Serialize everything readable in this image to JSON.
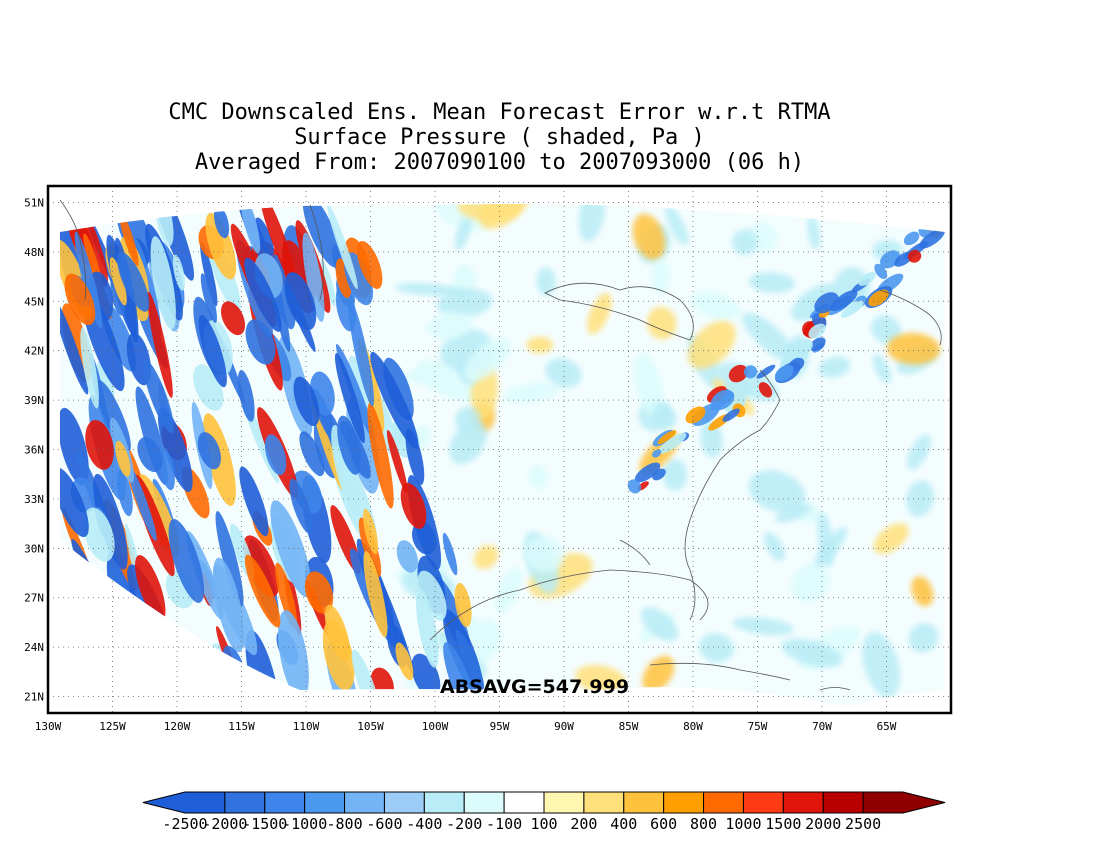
{
  "title": {
    "line1": "CMC Downscaled Ens. Mean Forecast Error w.r.t RTMA",
    "line2": "Surface Pressure ( shaded, Pa )",
    "line3": "Averaged From: 2007090100 to 2007093000 (06 h)"
  },
  "map": {
    "lon_range": [
      -130,
      -60
    ],
    "lat_range": [
      20,
      52
    ],
    "lon_ticks": [
      "130W",
      "125W",
      "120W",
      "115W",
      "110W",
      "105W",
      "100W",
      "95W",
      "90W",
      "85W",
      "80W",
      "75W",
      "70W",
      "65W"
    ],
    "lon_tick_values": [
      -130,
      -125,
      -120,
      -115,
      -110,
      -105,
      -100,
      -95,
      -90,
      -85,
      -80,
      -75,
      -70,
      -65
    ],
    "lat_ticks": [
      "21N",
      "24N",
      "27N",
      "30N",
      "33N",
      "36N",
      "39N",
      "42N",
      "45N",
      "48N",
      "51N"
    ],
    "lat_tick_values": [
      21,
      24,
      27,
      30,
      33,
      36,
      39,
      42,
      45,
      48,
      51
    ],
    "grid": "dotted",
    "field": "Surface Pressure forecast error, shaded, Pa"
  },
  "absavg_label": "ABSAVG=547.999",
  "colorbar": {
    "labels": [
      "-2500",
      "-2000",
      "-1500",
      "-1000",
      "-800",
      "-600",
      "-400",
      "-200",
      "-100",
      "100",
      "200",
      "400",
      "600",
      "800",
      "1000",
      "1500",
      "2000",
      "2500"
    ],
    "colors": [
      "#1e5ed8",
      "#2f72e0",
      "#3d85ea",
      "#4b98f0",
      "#72b4f5",
      "#9ccdf8",
      "#b8ecf6",
      "#dcfcfc",
      "#ffffff",
      "#fff6b0",
      "#ffe07a",
      "#ffc23c",
      "#ffa000",
      "#ff6a00",
      "#ff3a14",
      "#e0140a",
      "#b80000",
      "#900000"
    ]
  }
}
